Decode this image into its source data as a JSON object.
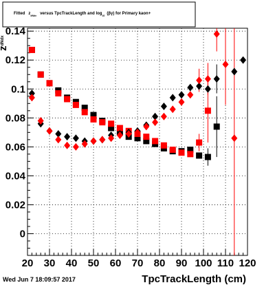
{
  "chart_data": {
    "type": "scatter",
    "title": "Fitted z_dNdx versus TpcTrackLength and log10(βγ) for Primary kaon+",
    "title_parts": {
      "fitted": "Fitted",
      "z": "z",
      "z_sub": "dNdx",
      "versus": "versus TpcTrackLength and log",
      "log_sub": "10",
      "beta_gamma": "(βγ) for Primary kaon+"
    },
    "xlabel": "TpcTrackLength (cm)",
    "ylabel": "z_dNdx",
    "ylabel_parts": {
      "main": "z",
      "sub": "dNdx"
    },
    "xlim": [
      20,
      120
    ],
    "ylim": [
      -0.015,
      0.142
    ],
    "xticks": [
      20,
      30,
      40,
      50,
      60,
      70,
      80,
      90,
      100,
      110,
      120
    ],
    "yticks": [
      0,
      0.02,
      0.04,
      0.06,
      0.08,
      0.1,
      0.12,
      0.14
    ],
    "ytick_labels": [
      "0",
      "0.02",
      "0.04",
      "0.06",
      "0.08",
      "0.1",
      "0.12",
      "0.14"
    ],
    "grid": true,
    "footer": "Wed Jun  7 18:09:57 2017",
    "series": [
      {
        "color": "#000000",
        "marker": "square",
        "points": [
          {
            "x": 22,
            "y": 0.127
          },
          {
            "x": 26,
            "y": 0.11
          },
          {
            "x": 30,
            "y": 0.104
          },
          {
            "x": 34,
            "y": 0.099
          },
          {
            "x": 38,
            "y": 0.094
          },
          {
            "x": 42,
            "y": 0.091
          },
          {
            "x": 46,
            "y": 0.087
          },
          {
            "x": 50,
            "y": 0.082
          },
          {
            "x": 54,
            "y": 0.078
          },
          {
            "x": 58,
            "y": 0.073
          },
          {
            "x": 62,
            "y": 0.07
          },
          {
            "x": 66,
            "y": 0.067
          },
          {
            "x": 70,
            "y": 0.066
          },
          {
            "x": 74,
            "y": 0.064
          },
          {
            "x": 78,
            "y": 0.062
          },
          {
            "x": 82,
            "y": 0.059
          },
          {
            "x": 86,
            "y": 0.057
          },
          {
            "x": 90,
            "y": 0.057
          },
          {
            "x": 94,
            "y": 0.058
          },
          {
            "x": 98,
            "y": 0.054
          },
          {
            "x": 102,
            "y": 0.053,
            "err": 0.006
          },
          {
            "x": 106,
            "y": 0.074,
            "err": 0.021
          }
        ]
      },
      {
        "color": "#ff0000",
        "marker": "square",
        "points": [
          {
            "x": 22,
            "y": 0.127
          },
          {
            "x": 26,
            "y": 0.11
          },
          {
            "x": 30,
            "y": 0.104
          },
          {
            "x": 34,
            "y": 0.097
          },
          {
            "x": 38,
            "y": 0.093
          },
          {
            "x": 42,
            "y": 0.089
          },
          {
            "x": 46,
            "y": 0.084
          },
          {
            "x": 50,
            "y": 0.079
          },
          {
            "x": 54,
            "y": 0.077
          },
          {
            "x": 58,
            "y": 0.076
          },
          {
            "x": 62,
            "y": 0.073
          },
          {
            "x": 66,
            "y": 0.071
          },
          {
            "x": 70,
            "y": 0.069
          },
          {
            "x": 74,
            "y": 0.067
          },
          {
            "x": 78,
            "y": 0.064
          },
          {
            "x": 82,
            "y": 0.061
          },
          {
            "x": 86,
            "y": 0.058
          },
          {
            "x": 90,
            "y": 0.056
          },
          {
            "x": 94,
            "y": 0.055
          },
          {
            "x": 98,
            "y": 0.063,
            "err": 0.006
          },
          {
            "x": 102,
            "y": 0.085,
            "err": 0.022
          }
        ]
      },
      {
        "color": "#000000",
        "marker": "diamond",
        "points": [
          {
            "x": 22,
            "y": 0.097
          },
          {
            "x": 26,
            "y": 0.076
          },
          {
            "x": 30,
            "y": 0.071
          },
          {
            "x": 34,
            "y": 0.069
          },
          {
            "x": 38,
            "y": 0.067
          },
          {
            "x": 42,
            "y": 0.066
          },
          {
            "x": 46,
            "y": 0.064
          },
          {
            "x": 50,
            "y": 0.064
          },
          {
            "x": 54,
            "y": 0.065
          },
          {
            "x": 58,
            "y": 0.068
          },
          {
            "x": 62,
            "y": 0.069
          },
          {
            "x": 66,
            "y": 0.07
          },
          {
            "x": 70,
            "y": 0.071
          },
          {
            "x": 74,
            "y": 0.075
          },
          {
            "x": 78,
            "y": 0.081
          },
          {
            "x": 82,
            "y": 0.088
          },
          {
            "x": 86,
            "y": 0.094
          },
          {
            "x": 90,
            "y": 0.096
          },
          {
            "x": 94,
            "y": 0.101
          },
          {
            "x": 98,
            "y": 0.102
          },
          {
            "x": 102,
            "y": 0.1
          },
          {
            "x": 106,
            "y": 0.107,
            "err": 0.01
          },
          {
            "x": 114,
            "y": 0.112
          },
          {
            "x": 118,
            "y": 0.12
          }
        ]
      },
      {
        "color": "#ff0000",
        "marker": "diamond",
        "points": [
          {
            "x": 22,
            "y": 0.094
          },
          {
            "x": 26,
            "y": 0.078
          },
          {
            "x": 30,
            "y": 0.071
          },
          {
            "x": 34,
            "y": 0.065
          },
          {
            "x": 38,
            "y": 0.061
          },
          {
            "x": 42,
            "y": 0.06
          },
          {
            "x": 46,
            "y": 0.062
          },
          {
            "x": 50,
            "y": 0.064
          },
          {
            "x": 54,
            "y": 0.065
          },
          {
            "x": 58,
            "y": 0.066
          },
          {
            "x": 62,
            "y": 0.068
          },
          {
            "x": 66,
            "y": 0.069
          },
          {
            "x": 70,
            "y": 0.07
          },
          {
            "x": 74,
            "y": 0.074
          },
          {
            "x": 78,
            "y": 0.077
          },
          {
            "x": 82,
            "y": 0.081
          },
          {
            "x": 86,
            "y": 0.086
          },
          {
            "x": 90,
            "y": 0.091
          },
          {
            "x": 94,
            "y": 0.096
          },
          {
            "x": 98,
            "y": 0.106,
            "err": 0.008
          },
          {
            "x": 102,
            "y": 0.107,
            "err": 0.011
          },
          {
            "x": 106,
            "y": 0.138,
            "err": 0.012
          },
          {
            "x": 110,
            "y": 0.117,
            "err": 0.028
          },
          {
            "x": 114,
            "y": 0.066,
            "err": 0.085
          }
        ]
      }
    ]
  }
}
